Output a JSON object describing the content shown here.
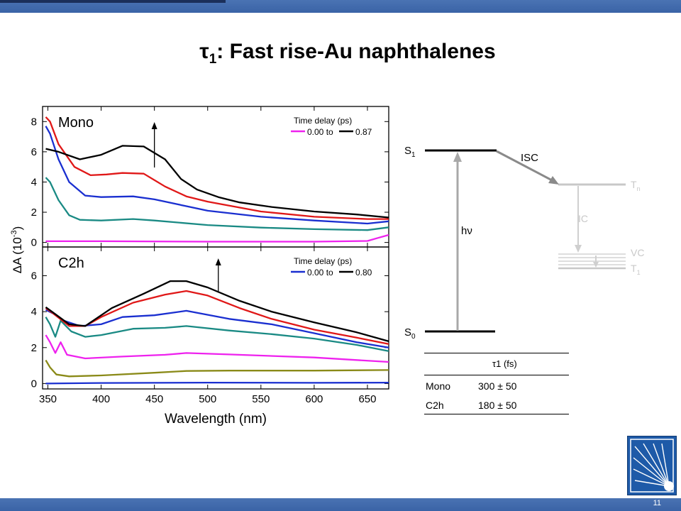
{
  "slide": {
    "title_main": "τ",
    "title_sub": "1",
    "title_rest": ": Fast rise-Au naphthalenes",
    "page_number": "11"
  },
  "colors": {
    "bar": "#3a63a6",
    "magenta": "#ee22ee",
    "olive": "#8a8a18",
    "teal": "#1a8a84",
    "blue": "#1a2fd0",
    "red": "#e01818",
    "black": "#000000"
  },
  "chart_data": [
    {
      "type": "line",
      "panel": "Mono",
      "label": "Mono",
      "xlim": [
        345,
        670
      ],
      "ylim": [
        -0.3,
        9
      ],
      "yticks": [
        "0",
        "2",
        "4",
        "6",
        "8"
      ],
      "legend_title": "Time delay (ps)",
      "legend_from": "0.00 to",
      "legend_to": "0.87",
      "annotation": "arrow up at 450 nm",
      "series": [
        {
          "color": "magenta",
          "points": [
            [
              348,
              0.08
            ],
            [
              400,
              0.08
            ],
            [
              500,
              0.05
            ],
            [
              600,
              0.05
            ],
            [
              650,
              0.1
            ],
            [
              660,
              0.3
            ],
            [
              670,
              0.5
            ]
          ]
        },
        {
          "color": "teal",
          "points": [
            [
              348,
              4.3
            ],
            [
              352,
              4.0
            ],
            [
              360,
              2.8
            ],
            [
              370,
              1.8
            ],
            [
              380,
              1.5
            ],
            [
              400,
              1.45
            ],
            [
              430,
              1.55
            ],
            [
              450,
              1.45
            ],
            [
              500,
              1.15
            ],
            [
              550,
              0.98
            ],
            [
              600,
              0.88
            ],
            [
              650,
              0.82
            ],
            [
              670,
              1.0
            ]
          ]
        },
        {
          "color": "blue",
          "points": [
            [
              348,
              7.7
            ],
            [
              352,
              7.2
            ],
            [
              360,
              5.5
            ],
            [
              370,
              4.0
            ],
            [
              385,
              3.1
            ],
            [
              400,
              3.0
            ],
            [
              430,
              3.05
            ],
            [
              450,
              2.85
            ],
            [
              480,
              2.4
            ],
            [
              500,
              2.1
            ],
            [
              550,
              1.7
            ],
            [
              600,
              1.45
            ],
            [
              650,
              1.25
            ],
            [
              670,
              1.4
            ]
          ]
        },
        {
          "color": "red",
          "points": [
            [
              348,
              8.3
            ],
            [
              352,
              8.0
            ],
            [
              360,
              6.5
            ],
            [
              375,
              5.0
            ],
            [
              390,
              4.45
            ],
            [
              405,
              4.5
            ],
            [
              420,
              4.6
            ],
            [
              440,
              4.55
            ],
            [
              460,
              3.7
            ],
            [
              480,
              3.05
            ],
            [
              500,
              2.7
            ],
            [
              550,
              2.05
            ],
            [
              600,
              1.7
            ],
            [
              650,
              1.55
            ],
            [
              670,
              1.55
            ]
          ]
        },
        {
          "color": "black",
          "points": [
            [
              348,
              6.2
            ],
            [
              360,
              6.0
            ],
            [
              380,
              5.5
            ],
            [
              400,
              5.8
            ],
            [
              420,
              6.4
            ],
            [
              440,
              6.35
            ],
            [
              460,
              5.5
            ],
            [
              475,
              4.2
            ],
            [
              490,
              3.5
            ],
            [
              510,
              3.0
            ],
            [
              530,
              2.65
            ],
            [
              560,
              2.35
            ],
            [
              600,
              2.05
            ],
            [
              640,
              1.85
            ],
            [
              670,
              1.65
            ]
          ]
        }
      ]
    },
    {
      "type": "line",
      "panel": "C2h",
      "label": "C2h",
      "xlabel": "Wavelength (nm)",
      "xlim": [
        345,
        670
      ],
      "xticks": [
        "350",
        "400",
        "450",
        "500",
        "550",
        "600",
        "650"
      ],
      "ylim": [
        -0.3,
        7.6
      ],
      "yticks": [
        "0",
        "2",
        "4",
        "6"
      ],
      "legend_title": "Time delay (ps)",
      "legend_from": "0.00 to",
      "legend_to": "0.80",
      "annotation": "arrow up at 510 nm",
      "series": [
        {
          "color": "blue",
          "points": [
            [
              348,
              0.0
            ],
            [
              400,
              0.03
            ],
            [
              500,
              0.05
            ],
            [
              600,
              0.04
            ],
            [
              670,
              0.05
            ]
          ]
        },
        {
          "color": "olive",
          "points": [
            [
              348,
              1.3
            ],
            [
              352,
              0.9
            ],
            [
              358,
              0.5
            ],
            [
              370,
              0.4
            ],
            [
              400,
              0.45
            ],
            [
              450,
              0.6
            ],
            [
              480,
              0.7
            ],
            [
              520,
              0.72
            ],
            [
              600,
              0.72
            ],
            [
              670,
              0.75
            ]
          ]
        },
        {
          "color": "magenta",
          "points": [
            [
              348,
              2.7
            ],
            [
              352,
              2.3
            ],
            [
              357,
              1.7
            ],
            [
              362,
              2.3
            ],
            [
              368,
              1.6
            ],
            [
              385,
              1.4
            ],
            [
              420,
              1.5
            ],
            [
              460,
              1.6
            ],
            [
              480,
              1.7
            ],
            [
              520,
              1.62
            ],
            [
              600,
              1.45
            ],
            [
              670,
              1.2
            ]
          ]
        },
        {
          "color": "teal",
          "points": [
            [
              348,
              3.7
            ],
            [
              352,
              3.3
            ],
            [
              357,
              2.6
            ],
            [
              362,
              3.5
            ],
            [
              372,
              2.9
            ],
            [
              385,
              2.6
            ],
            [
              400,
              2.7
            ],
            [
              430,
              3.05
            ],
            [
              460,
              3.1
            ],
            [
              480,
              3.2
            ],
            [
              520,
              2.95
            ],
            [
              560,
              2.75
            ],
            [
              600,
              2.5
            ],
            [
              640,
              2.15
            ],
            [
              670,
              1.8
            ]
          ]
        },
        {
          "color": "blue2",
          "points": [
            [
              348,
              4.1
            ],
            [
              355,
              3.9
            ],
            [
              365,
              3.5
            ],
            [
              380,
              3.2
            ],
            [
              400,
              3.3
            ],
            [
              420,
              3.7
            ],
            [
              450,
              3.8
            ],
            [
              480,
              4.05
            ],
            [
              520,
              3.6
            ],
            [
              560,
              3.3
            ],
            [
              600,
              2.8
            ],
            [
              640,
              2.3
            ],
            [
              670,
              2.0
            ]
          ]
        },
        {
          "color": "red",
          "points": [
            [
              348,
              4.2
            ],
            [
              355,
              3.9
            ],
            [
              370,
              3.2
            ],
            [
              385,
              3.2
            ],
            [
              400,
              3.7
            ],
            [
              430,
              4.5
            ],
            [
              460,
              4.95
            ],
            [
              480,
              5.15
            ],
            [
              500,
              4.9
            ],
            [
              530,
              4.2
            ],
            [
              560,
              3.6
            ],
            [
              600,
              3.0
            ],
            [
              640,
              2.55
            ],
            [
              670,
              2.2
            ]
          ]
        },
        {
          "color": "black",
          "points": [
            [
              348,
              4.25
            ],
            [
              355,
              3.95
            ],
            [
              370,
              3.3
            ],
            [
              385,
              3.2
            ],
            [
              410,
              4.2
            ],
            [
              440,
              5.0
            ],
            [
              465,
              5.7
            ],
            [
              480,
              5.7
            ],
            [
              500,
              5.35
            ],
            [
              530,
              4.6
            ],
            [
              560,
              4.0
            ],
            [
              600,
              3.4
            ],
            [
              640,
              2.85
            ],
            [
              670,
              2.35
            ]
          ]
        }
      ]
    }
  ],
  "y_axis_label": "ΔA (10-3)",
  "y_axis_label_parts": {
    "delta": "ΔA  (10",
    "exp": "-3",
    "close": ")"
  },
  "diagram": {
    "s0": "S",
    "s0_sub": "0",
    "s1": "S",
    "s1_sub": "1",
    "isc": "ISC",
    "hv": "hν",
    "tn": "T",
    "tn_sub": "n",
    "ic": "IC",
    "vc": "VC",
    "t1": "T",
    "t1_sub": "1"
  },
  "table": {
    "header": "τ1 (fs)",
    "rows": [
      {
        "name": "Mono",
        "value": "300 ± 50"
      },
      {
        "name": "C2h",
        "value": "180 ± 50"
      }
    ]
  }
}
